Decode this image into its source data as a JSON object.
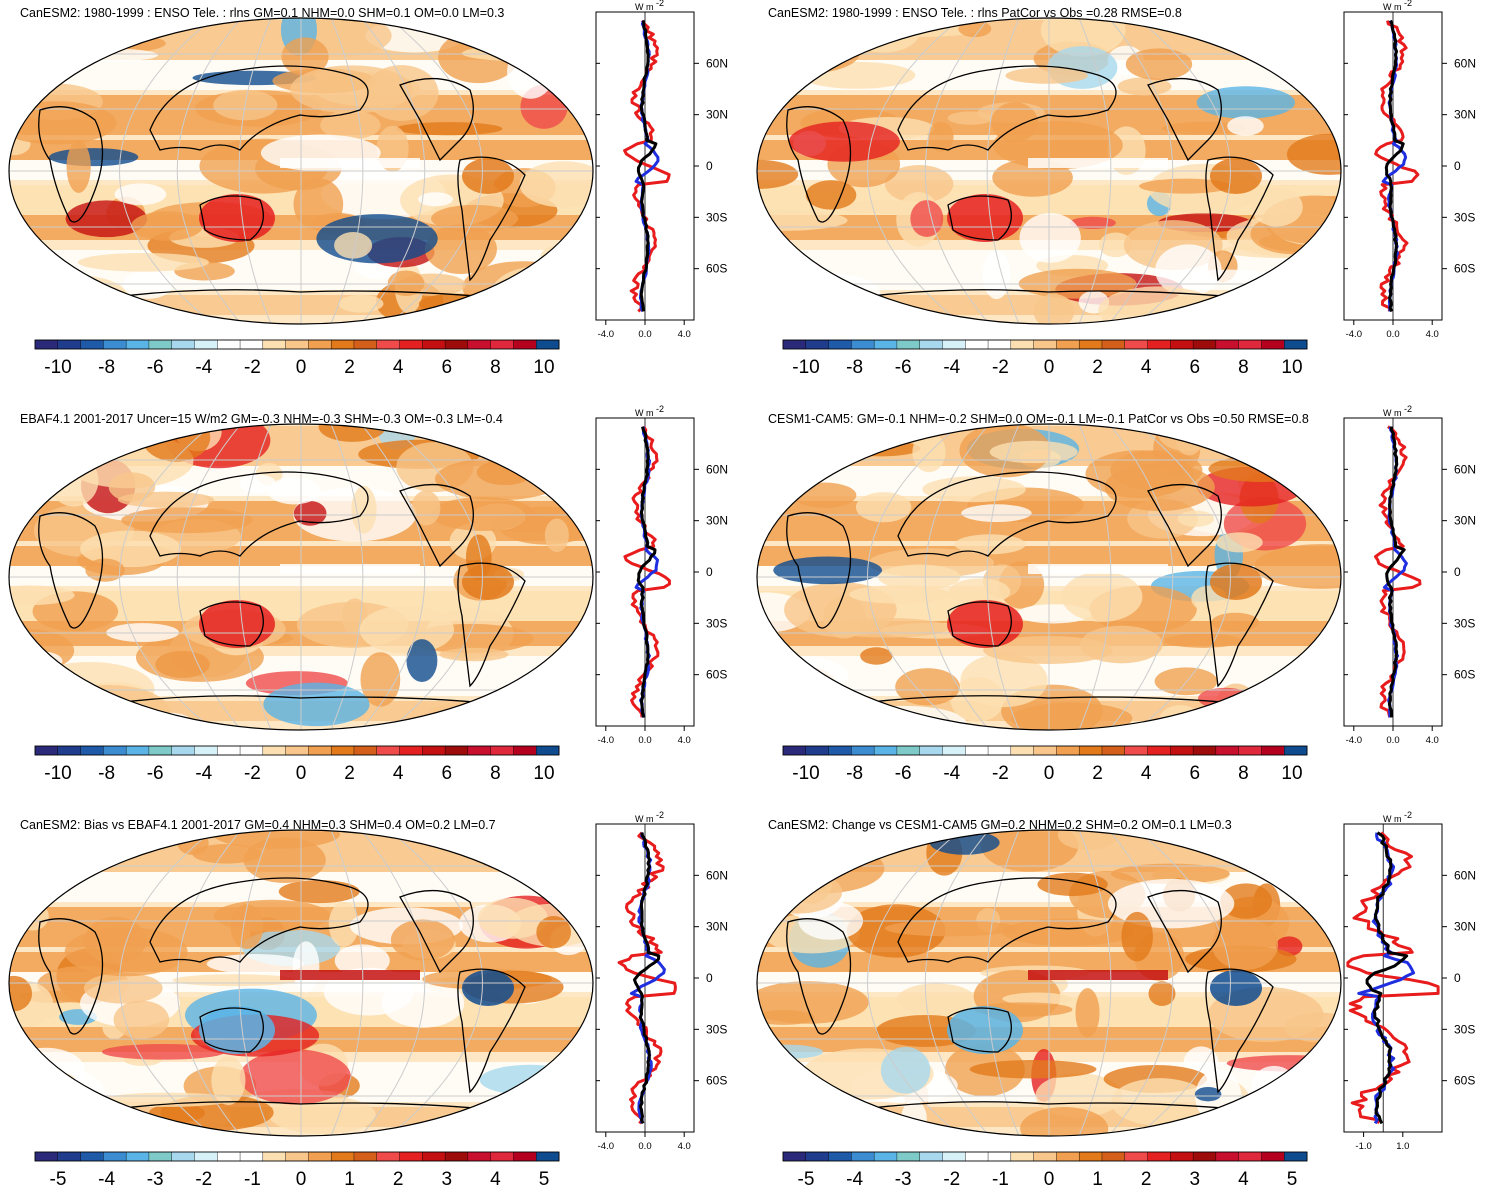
{
  "colorbar": {
    "colors": [
      "#2b2a7a",
      "#203c8c",
      "#1f5aa8",
      "#3c8cd2",
      "#5ab4e6",
      "#7ecac8",
      "#a8d8ee",
      "#d7f1f9",
      "#ffffff",
      "#ffffff",
      "#fde0b2",
      "#f8c58a",
      "#f0a050",
      "#e27a1c",
      "#d35f1a",
      "#ef4b4b",
      "#e52020",
      "#c41010",
      "#9e0b0b",
      "#c8102e",
      "#e0283c",
      "#b4001e",
      "#0f4b8f"
    ],
    "labels_full": [
      "-10",
      "-8",
      "-6",
      "-4",
      "-2",
      "0",
      "2",
      "4",
      "6",
      "8",
      "10"
    ],
    "labels_half": [
      "-5",
      "-4",
      "-3",
      "-2",
      "-1",
      "0",
      "1",
      "2",
      "3",
      "4",
      "5"
    ]
  },
  "lat_labels": [
    "60N",
    "30N",
    "0",
    "30S",
    "60S"
  ],
  "profile_unit": "W m",
  "profile_unit_sup": "-2",
  "legend_series_colors": {
    "red": "#e81c1c",
    "blue": "#1f2fe0",
    "black": "#000000"
  },
  "chart_data": [
    {
      "type": "heatmap",
      "title": "CanESM2: 1980-1999 : ENSO Tele. : rlns GM=0.1 NHM=0.0 SHM=0.1 OM=0.0 LM=0.3",
      "colorbar_ticks": [
        "-10",
        "-8",
        "-6",
        "-4",
        "-2",
        "0",
        "2",
        "4",
        "6",
        "8",
        "10"
      ],
      "profile": {
        "xticks": [
          "-4.0",
          "0.0",
          "4.0"
        ],
        "xlim": [
          -5,
          5
        ],
        "ylim": [
          -90,
          90
        ],
        "yticks": [
          "60N",
          "30N",
          "0",
          "30S",
          "60S"
        ]
      }
    },
    {
      "type": "heatmap",
      "title": "CanESM2: 1980-1999 : ENSO Tele. : rlns PatCor vs Obs =0.28 RMSE=0.8",
      "colorbar_ticks": [
        "-10",
        "-8",
        "-6",
        "-4",
        "-2",
        "0",
        "2",
        "4",
        "6",
        "8",
        "10"
      ],
      "profile": {
        "xticks": [
          "-4.0",
          "0.0",
          "4.0"
        ],
        "xlim": [
          -5,
          5
        ],
        "ylim": [
          -90,
          90
        ],
        "yticks": [
          "60N",
          "30N",
          "0",
          "30S",
          "60S"
        ]
      }
    },
    {
      "type": "heatmap",
      "title": "EBAF4.1 2001-2017 Uncer=15 W/m2 GM=-0.3 NHM=-0.3 SHM=-0.3 OM=-0.3 LM=-0.4",
      "colorbar_ticks": [
        "-10",
        "-8",
        "-6",
        "-4",
        "-2",
        "0",
        "2",
        "4",
        "6",
        "8",
        "10"
      ],
      "profile": {
        "xticks": [
          "-4.0",
          "0.0",
          "4.0"
        ],
        "xlim": [
          -5,
          5
        ],
        "ylim": [
          -90,
          90
        ],
        "yticks": [
          "60N",
          "30N",
          "0",
          "30S",
          "60S"
        ]
      }
    },
    {
      "type": "heatmap",
      "title": "CESM1-CAM5: GM=-0.1 NHM=-0.2 SHM=0.0 OM=-0.1 LM=-0.1 PatCor vs Obs =0.50 RMSE=0.8",
      "colorbar_ticks": [
        "-10",
        "-8",
        "-6",
        "-4",
        "-2",
        "0",
        "2",
        "4",
        "6",
        "8",
        "10"
      ],
      "profile": {
        "xticks": [
          "-4.0",
          "0.0",
          "4.0"
        ],
        "xlim": [
          -5,
          5
        ],
        "ylim": [
          -90,
          90
        ],
        "yticks": [
          "60N",
          "30N",
          "0",
          "30S",
          "60S"
        ]
      }
    },
    {
      "type": "heatmap",
      "title": "CanESM2: Bias vs EBAF4.1 2001-2017 GM=0.4 NHM=0.3 SHM=0.4 OM=0.2 LM=0.7",
      "colorbar_ticks": [
        "-5",
        "-4",
        "-3",
        "-2",
        "-1",
        "0",
        "1",
        "2",
        "3",
        "4",
        "5"
      ],
      "profile": {
        "xticks": [
          "-4.0",
          "0.0",
          "4.0"
        ],
        "xlim": [
          -5,
          5
        ],
        "ylim": [
          -90,
          90
        ],
        "yticks": [
          "60N",
          "30N",
          "0",
          "30S",
          "60S"
        ]
      }
    },
    {
      "type": "heatmap",
      "title": "CanESM2: Change vs CESM1-CAM5 GM=0.2 NHM=0.2 SHM=0.2 OM=0.1 LM=0.3",
      "colorbar_ticks": [
        "-5",
        "-4",
        "-3",
        "-2",
        "-1",
        "0",
        "1",
        "2",
        "3",
        "4",
        "5"
      ],
      "profile": {
        "xticks": [
          "-1.0",
          "1.0"
        ],
        "xlim": [
          -2,
          3
        ],
        "ylim": [
          -90,
          90
        ],
        "yticks": [
          "60N",
          "30N",
          "0",
          "30S",
          "60S"
        ]
      }
    }
  ]
}
